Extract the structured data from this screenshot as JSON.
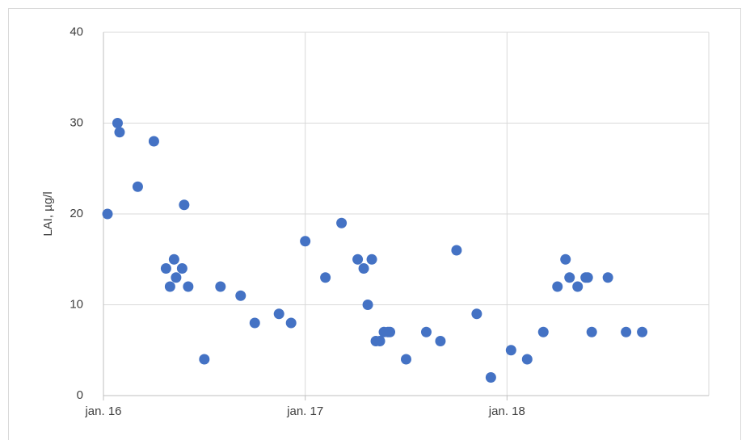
{
  "chart_data": {
    "type": "scatter",
    "y_label": "LAI, µg/l",
    "color": "#4472c4",
    "grid": true,
    "x": [
      2016.02,
      2016.07,
      2016.08,
      2016.17,
      2016.25,
      2016.31,
      2016.33,
      2016.35,
      2016.36,
      2016.39,
      2016.4,
      2016.42,
      2016.5,
      2016.58,
      2016.68,
      2016.75,
      2016.87,
      2016.93,
      2017.0,
      2017.1,
      2017.18,
      2017.26,
      2017.29,
      2017.33,
      2017.31,
      2017.35,
      2017.37,
      2017.39,
      2017.41,
      2017.42,
      2017.5,
      2017.6,
      2017.67,
      2017.75,
      2017.85,
      2017.92,
      2018.02,
      2018.1,
      2018.18,
      2018.25,
      2018.29,
      2018.31,
      2018.35,
      2018.39,
      2018.4,
      2018.42,
      2018.5,
      2018.59,
      2018.67
    ],
    "values": [
      20,
      30,
      29,
      23,
      28,
      14,
      12,
      15,
      13,
      14,
      21,
      12,
      4,
      12,
      11,
      8,
      9,
      8,
      17,
      13,
      19,
      15,
      14,
      15,
      10,
      6,
      6,
      7,
      7,
      7,
      4,
      7,
      6,
      16,
      9,
      2,
      5,
      4,
      7,
      12,
      15,
      13,
      12,
      13,
      13,
      7,
      13,
      7,
      7
    ],
    "xlim": [
      2016,
      2019
    ],
    "xticks": [
      {
        "value": 2016,
        "label": "jan. 16"
      },
      {
        "value": 2017,
        "label": "jan. 17"
      },
      {
        "value": 2018,
        "label": "jan. 18"
      }
    ],
    "ylim": [
      0,
      40
    ],
    "yticks": [
      0,
      10,
      20,
      30,
      40
    ]
  }
}
